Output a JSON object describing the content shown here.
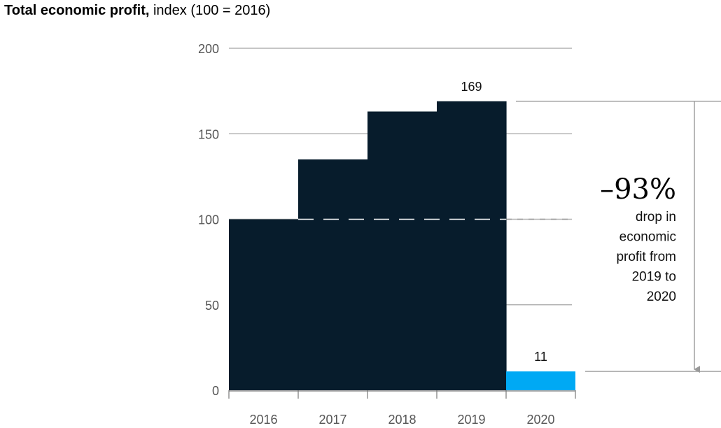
{
  "title": {
    "bold": "Total economic profit,",
    "rest": " index (100 = 2016)"
  },
  "chart_data": {
    "type": "bar",
    "categories": [
      "2016",
      "2017",
      "2018",
      "2019",
      "2020"
    ],
    "values": [
      100,
      135,
      163,
      169,
      11
    ],
    "data_labels": {
      "2019": "169",
      "2020": "11"
    },
    "ylim": [
      0,
      200
    ],
    "yticks": [
      0,
      50,
      100,
      150,
      200
    ],
    "grid": true,
    "reference_line": 100,
    "colors": {
      "bars": "#071c2c",
      "highlight": "#00a9f4",
      "grid": "#b3b3b3"
    },
    "annotation": {
      "value": "–93%",
      "lines": [
        "drop in",
        "economic",
        "profit from",
        "2019 to",
        "2020"
      ]
    }
  }
}
